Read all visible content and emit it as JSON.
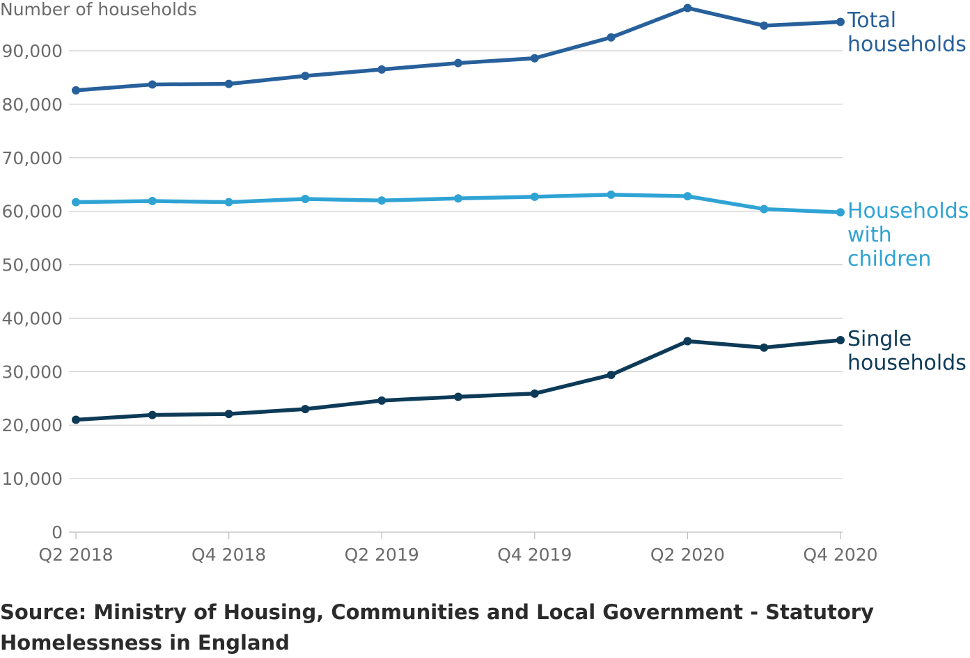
{
  "chart_data": {
    "type": "line",
    "ylabel": "Number of households",
    "xlabel": "",
    "title": "",
    "ylim": [
      0,
      96000
    ],
    "yticks": [
      0,
      10000,
      20000,
      30000,
      40000,
      50000,
      60000,
      70000,
      80000,
      90000
    ],
    "ytick_labels": [
      "0",
      "10,000",
      "20,000",
      "30,000",
      "40,000",
      "50,000",
      "60,000",
      "70,000",
      "80,000",
      "90,000"
    ],
    "categories": [
      "Q2 2018",
      "Q3 2018",
      "Q4 2018",
      "Q1 2019",
      "Q2 2019",
      "Q3 2019",
      "Q4 2019",
      "Q1 2020",
      "Q2 2020",
      "Q3 2020",
      "Q4 2020"
    ],
    "xtick_labels": [
      "Q2 2018",
      "",
      "Q4 2018",
      "",
      "Q2 2019",
      "",
      "Q4 2019",
      "",
      "Q2 2020",
      "",
      "Q4 2020"
    ],
    "grid": true,
    "legend": "direct labels at line ends",
    "series": [
      {
        "name": "Total households",
        "label_lines": [
          "Total",
          "households"
        ],
        "color": "#27609b",
        "values": [
          82600,
          83700,
          83800,
          85300,
          86500,
          87700,
          88600,
          92500,
          98000,
          94700,
          95400
        ]
      },
      {
        "name": "Households with children",
        "label_lines": [
          "Households",
          "with",
          "children"
        ],
        "color": "#2fa3d4",
        "values": [
          61700,
          61900,
          61700,
          62300,
          62000,
          62400,
          62700,
          63100,
          62800,
          60400,
          59800
        ]
      },
      {
        "name": "Single households",
        "label_lines": [
          "Single",
          "households"
        ],
        "color": "#0d3a57",
        "values": [
          21000,
          21900,
          22100,
          23000,
          24600,
          25300,
          25900,
          29400,
          35700,
          34500,
          35900
        ]
      }
    ]
  },
  "footer": {
    "source": "Source: Ministry of Housing, Communities and Local Government - Statutory Homelessness in England"
  }
}
